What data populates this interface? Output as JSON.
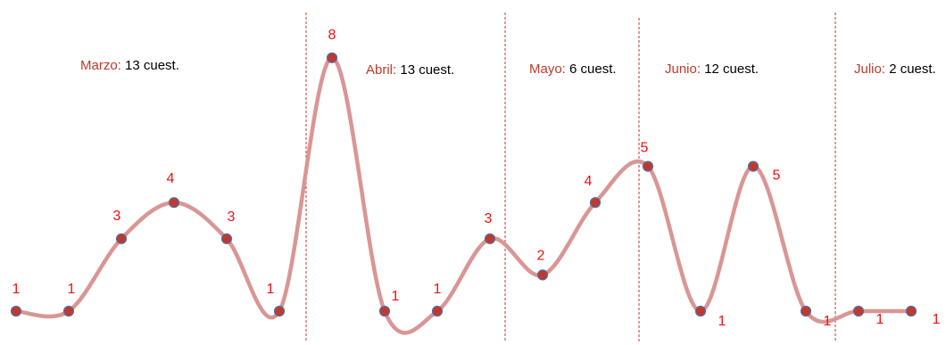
{
  "chart_data": {
    "type": "line",
    "title": "",
    "xlabel": "",
    "ylabel": "",
    "ylim": [
      1,
      8
    ],
    "grid": false,
    "legend": "none",
    "line_color": "#d99694",
    "marker_color": "#c0392b",
    "marker_edge": "#4f6fb0",
    "label_color": "#ee1111",
    "divider_color": "#c0392b",
    "values": [
      1,
      1,
      3,
      4,
      3,
      1,
      8,
      1,
      1,
      3,
      2,
      4,
      5,
      1,
      5,
      1,
      1,
      1
    ],
    "labels": [
      "1",
      "1",
      "3",
      "4",
      "3",
      "1",
      "8",
      "1",
      "1",
      "3",
      "2",
      "4",
      "5",
      "1",
      "5",
      "1",
      "1",
      "1"
    ],
    "annotations": [
      {
        "name": "Marzo:",
        "text": " 13 cuest."
      },
      {
        "name": "Abril:",
        "text": " 13 cuest."
      },
      {
        "name": "Mayo:",
        "text": " 6 cuest."
      },
      {
        "name": "Junio:",
        "text": " 12 cuest."
      },
      {
        "name": "Julio:",
        "text": " 2 cuest."
      }
    ]
  }
}
